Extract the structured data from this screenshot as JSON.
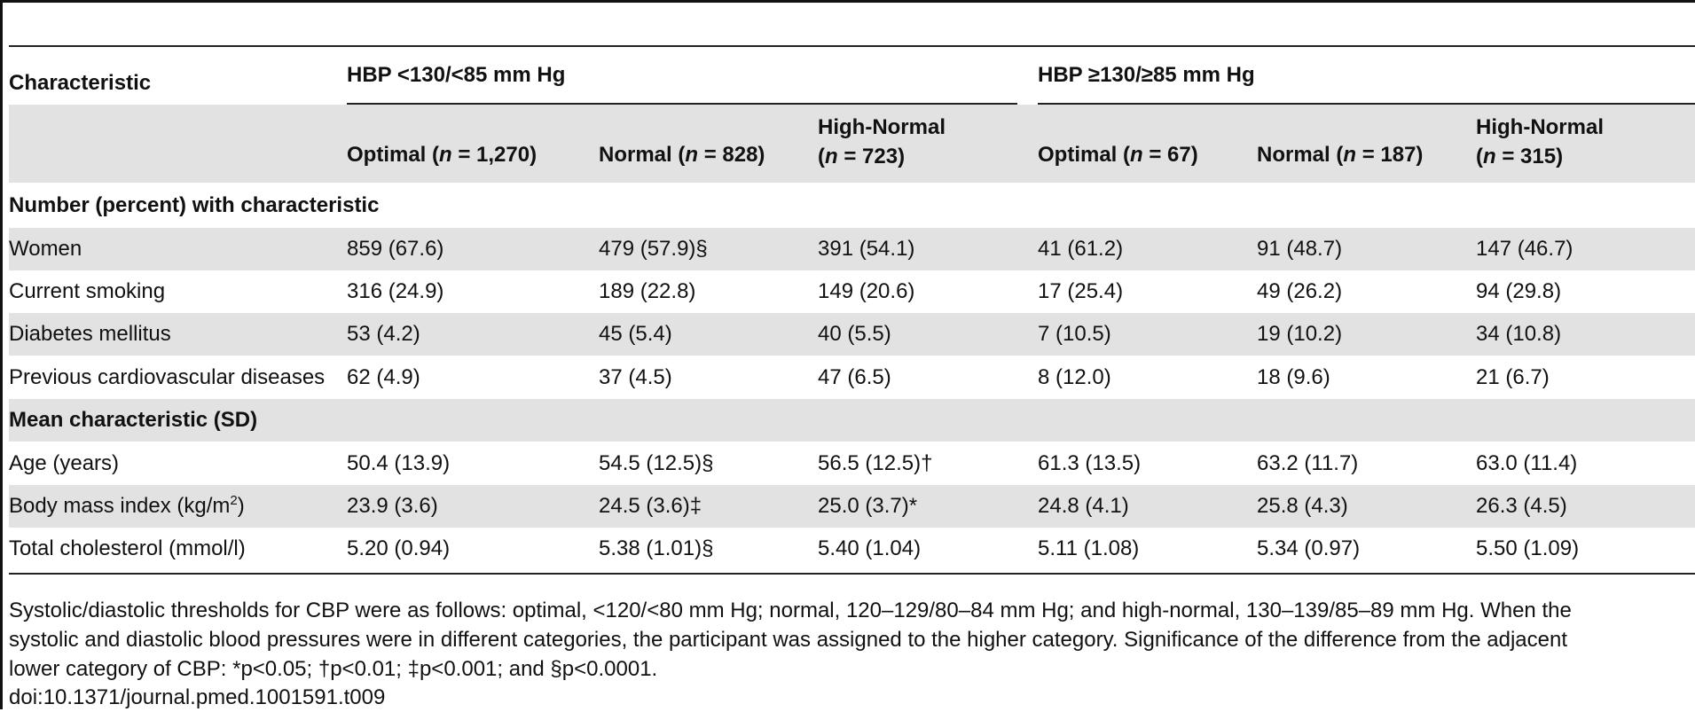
{
  "table": {
    "stub_header": "Characteristic",
    "groups": [
      "HBP <130/<85 mm Hg",
      "HBP ≥130/≥85 mm Hg"
    ],
    "columns": [
      {
        "line1": "Optimal (",
        "n": "n",
        "line2": " = 1,270)"
      },
      {
        "line1": "Normal (",
        "n": "n",
        "line2": " = 828)"
      },
      {
        "top": "High-Normal",
        "open": "(",
        "n": "n",
        "rest": " = 723)"
      },
      {
        "line1": "Optimal (",
        "n": "n",
        "line2": " = 67)"
      },
      {
        "line1": "Normal (",
        "n": "n",
        "line2": " = 187)"
      },
      {
        "top": "High-Normal",
        "open": "(",
        "n": "n",
        "rest": " = 315)"
      }
    ],
    "sections": {
      "number": "Number (percent) with characteristic",
      "mean": "Mean characteristic (SD)"
    },
    "rows": [
      {
        "label": "Women",
        "cells": [
          "859 (67.6)",
          "479 (57.9)§",
          "391 (54.1)",
          "41 (61.2)",
          "91 (48.7)",
          "147 (46.7)"
        ]
      },
      {
        "label": "Current smoking",
        "cells": [
          "316 (24.9)",
          "189 (22.8)",
          "149 (20.6)",
          "17 (25.4)",
          "49 (26.2)",
          "94 (29.8)"
        ]
      },
      {
        "label": "Diabetes mellitus",
        "cells": [
          "53 (4.2)",
          "45 (5.4)",
          "40 (5.5)",
          "7 (10.5)",
          "19 (10.2)",
          "34 (10.8)"
        ]
      },
      {
        "label": "Previous cardiovascular diseases",
        "cells": [
          "62 (4.9)",
          "37 (4.5)",
          "47 (6.5)",
          "8 (12.0)",
          "18 (9.6)",
          "21 (6.7)"
        ]
      },
      {
        "label": "Age (years)",
        "cells": [
          "50.4 (13.9)",
          "54.5 (12.5)§",
          "56.5 (12.5)†",
          "61.3 (13.5)",
          "63.2 (11.7)",
          "63.0 (11.4)"
        ]
      },
      {
        "label_pre": "Body mass index (kg/m",
        "label_sup": "2",
        "label_post": ")",
        "cells": [
          "23.9 (3.6)",
          "24.5 (3.6)‡",
          "25.0 (3.7)*",
          "24.8 (4.1)",
          "25.8 (4.3)",
          "26.3 (4.5)"
        ]
      },
      {
        "label": "Total cholesterol (mmol/l)",
        "cells": [
          "5.20 (0.94)",
          "5.38 (1.01)§",
          "5.40 (1.04)",
          "5.11 (1.08)",
          "5.34 (0.97)",
          "5.50 (1.09)"
        ]
      }
    ]
  },
  "footnote": {
    "line1": "Systolic/diastolic thresholds for CBP were as follows: optimal, <120/<80 mm Hg; normal, 120–129/80–84 mm Hg; and high-normal, 130–139/85–89 mm Hg. When the",
    "line2": "systolic and diastolic blood pressures were in different categories, the participant was assigned to the higher category. Significance of the difference from the adjacent",
    "line3": "lower category of CBP: *p<0.05; †p<0.01; ‡p<0.001; and §p<0.0001.",
    "doi": "doi:10.1371/journal.pmed.1001591.t009"
  }
}
